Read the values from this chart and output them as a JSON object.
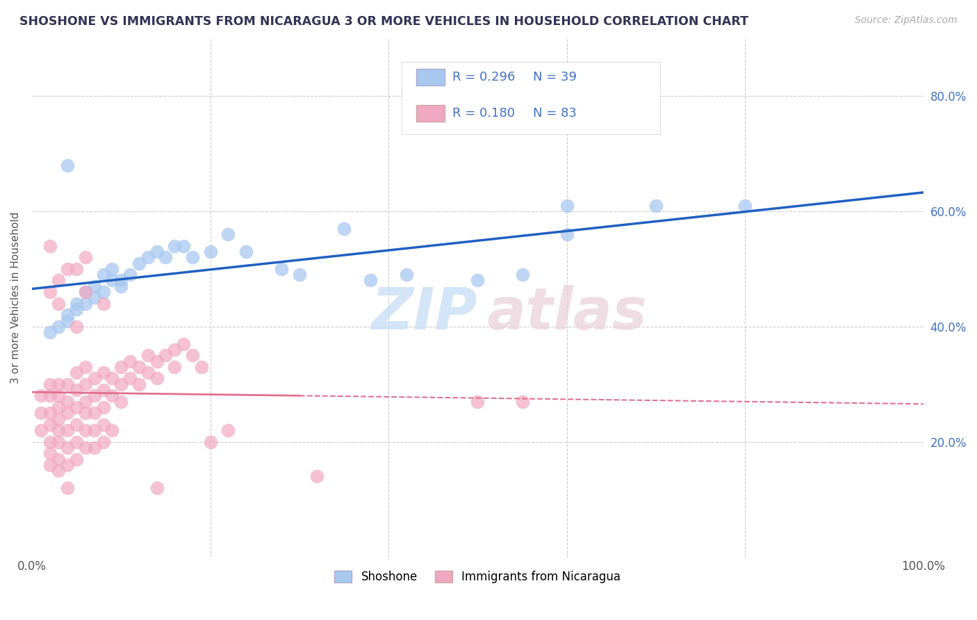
{
  "title": "SHOSHONE VS IMMIGRANTS FROM NICARAGUA 3 OR MORE VEHICLES IN HOUSEHOLD CORRELATION CHART",
  "source_text": "Source: ZipAtlas.com",
  "ylabel": "3 or more Vehicles in Household",
  "xlim": [
    0,
    1.0
  ],
  "ylim": [
    0,
    0.9
  ],
  "legend_r1": "R = 0.296",
  "legend_n1": "N = 39",
  "legend_r2": "R = 0.180",
  "legend_n2": "N = 83",
  "shoshone_color": "#a8c8f0",
  "nicaragua_color": "#f0a8c0",
  "shoshone_line_color": "#2060c0",
  "nicaragua_line_color": "#e07090",
  "legend_text_color": "#4472c4",
  "title_color": "#333355",
  "background_color": "#ffffff",
  "grid_color": "#cccccc",
  "right_tick_color": "#4472c4",
  "shoshone_scatter": [
    [
      0.02,
      0.39
    ],
    [
      0.03,
      0.4
    ],
    [
      0.04,
      0.41
    ],
    [
      0.04,
      0.42
    ],
    [
      0.05,
      0.44
    ],
    [
      0.05,
      0.43
    ],
    [
      0.06,
      0.46
    ],
    [
      0.06,
      0.44
    ],
    [
      0.07,
      0.47
    ],
    [
      0.07,
      0.45
    ],
    [
      0.08,
      0.49
    ],
    [
      0.08,
      0.46
    ],
    [
      0.09,
      0.5
    ],
    [
      0.09,
      0.48
    ],
    [
      0.1,
      0.48
    ],
    [
      0.1,
      0.47
    ],
    [
      0.11,
      0.49
    ],
    [
      0.12,
      0.51
    ],
    [
      0.13,
      0.52
    ],
    [
      0.14,
      0.53
    ],
    [
      0.15,
      0.52
    ],
    [
      0.16,
      0.54
    ],
    [
      0.17,
      0.54
    ],
    [
      0.18,
      0.52
    ],
    [
      0.2,
      0.53
    ],
    [
      0.22,
      0.56
    ],
    [
      0.24,
      0.53
    ],
    [
      0.28,
      0.5
    ],
    [
      0.3,
      0.49
    ],
    [
      0.38,
      0.48
    ],
    [
      0.42,
      0.49
    ],
    [
      0.5,
      0.48
    ],
    [
      0.55,
      0.49
    ],
    [
      0.6,
      0.56
    ],
    [
      0.7,
      0.61
    ],
    [
      0.04,
      0.68
    ],
    [
      0.8,
      0.61
    ],
    [
      0.6,
      0.61
    ],
    [
      0.35,
      0.57
    ]
  ],
  "nicaragua_scatter": [
    [
      0.01,
      0.28
    ],
    [
      0.01,
      0.25
    ],
    [
      0.01,
      0.22
    ],
    [
      0.02,
      0.3
    ],
    [
      0.02,
      0.28
    ],
    [
      0.02,
      0.25
    ],
    [
      0.02,
      0.23
    ],
    [
      0.02,
      0.2
    ],
    [
      0.02,
      0.18
    ],
    [
      0.02,
      0.16
    ],
    [
      0.03,
      0.3
    ],
    [
      0.03,
      0.28
    ],
    [
      0.03,
      0.26
    ],
    [
      0.03,
      0.24
    ],
    [
      0.03,
      0.22
    ],
    [
      0.03,
      0.2
    ],
    [
      0.03,
      0.17
    ],
    [
      0.03,
      0.15
    ],
    [
      0.04,
      0.3
    ],
    [
      0.04,
      0.27
    ],
    [
      0.04,
      0.25
    ],
    [
      0.04,
      0.22
    ],
    [
      0.04,
      0.19
    ],
    [
      0.04,
      0.16
    ],
    [
      0.04,
      0.12
    ],
    [
      0.05,
      0.32
    ],
    [
      0.05,
      0.29
    ],
    [
      0.05,
      0.26
    ],
    [
      0.05,
      0.23
    ],
    [
      0.05,
      0.2
    ],
    [
      0.05,
      0.17
    ],
    [
      0.06,
      0.33
    ],
    [
      0.06,
      0.3
    ],
    [
      0.06,
      0.27
    ],
    [
      0.06,
      0.25
    ],
    [
      0.06,
      0.22
    ],
    [
      0.06,
      0.19
    ],
    [
      0.07,
      0.31
    ],
    [
      0.07,
      0.28
    ],
    [
      0.07,
      0.25
    ],
    [
      0.07,
      0.22
    ],
    [
      0.07,
      0.19
    ],
    [
      0.08,
      0.32
    ],
    [
      0.08,
      0.29
    ],
    [
      0.08,
      0.26
    ],
    [
      0.08,
      0.23
    ],
    [
      0.08,
      0.2
    ],
    [
      0.09,
      0.31
    ],
    [
      0.09,
      0.28
    ],
    [
      0.1,
      0.33
    ],
    [
      0.1,
      0.3
    ],
    [
      0.1,
      0.27
    ],
    [
      0.11,
      0.34
    ],
    [
      0.11,
      0.31
    ],
    [
      0.12,
      0.33
    ],
    [
      0.12,
      0.3
    ],
    [
      0.13,
      0.35
    ],
    [
      0.13,
      0.32
    ],
    [
      0.14,
      0.34
    ],
    [
      0.14,
      0.31
    ],
    [
      0.15,
      0.35
    ],
    [
      0.16,
      0.36
    ],
    [
      0.16,
      0.33
    ],
    [
      0.17,
      0.37
    ],
    [
      0.18,
      0.35
    ],
    [
      0.19,
      0.33
    ],
    [
      0.2,
      0.2
    ],
    [
      0.22,
      0.22
    ],
    [
      0.5,
      0.27
    ],
    [
      0.55,
      0.27
    ],
    [
      0.02,
      0.54
    ],
    [
      0.02,
      0.46
    ],
    [
      0.03,
      0.48
    ],
    [
      0.03,
      0.44
    ],
    [
      0.04,
      0.5
    ],
    [
      0.05,
      0.5
    ],
    [
      0.05,
      0.4
    ],
    [
      0.06,
      0.52
    ],
    [
      0.06,
      0.46
    ],
    [
      0.08,
      0.44
    ],
    [
      0.09,
      0.22
    ],
    [
      0.14,
      0.12
    ],
    [
      0.32,
      0.14
    ]
  ]
}
